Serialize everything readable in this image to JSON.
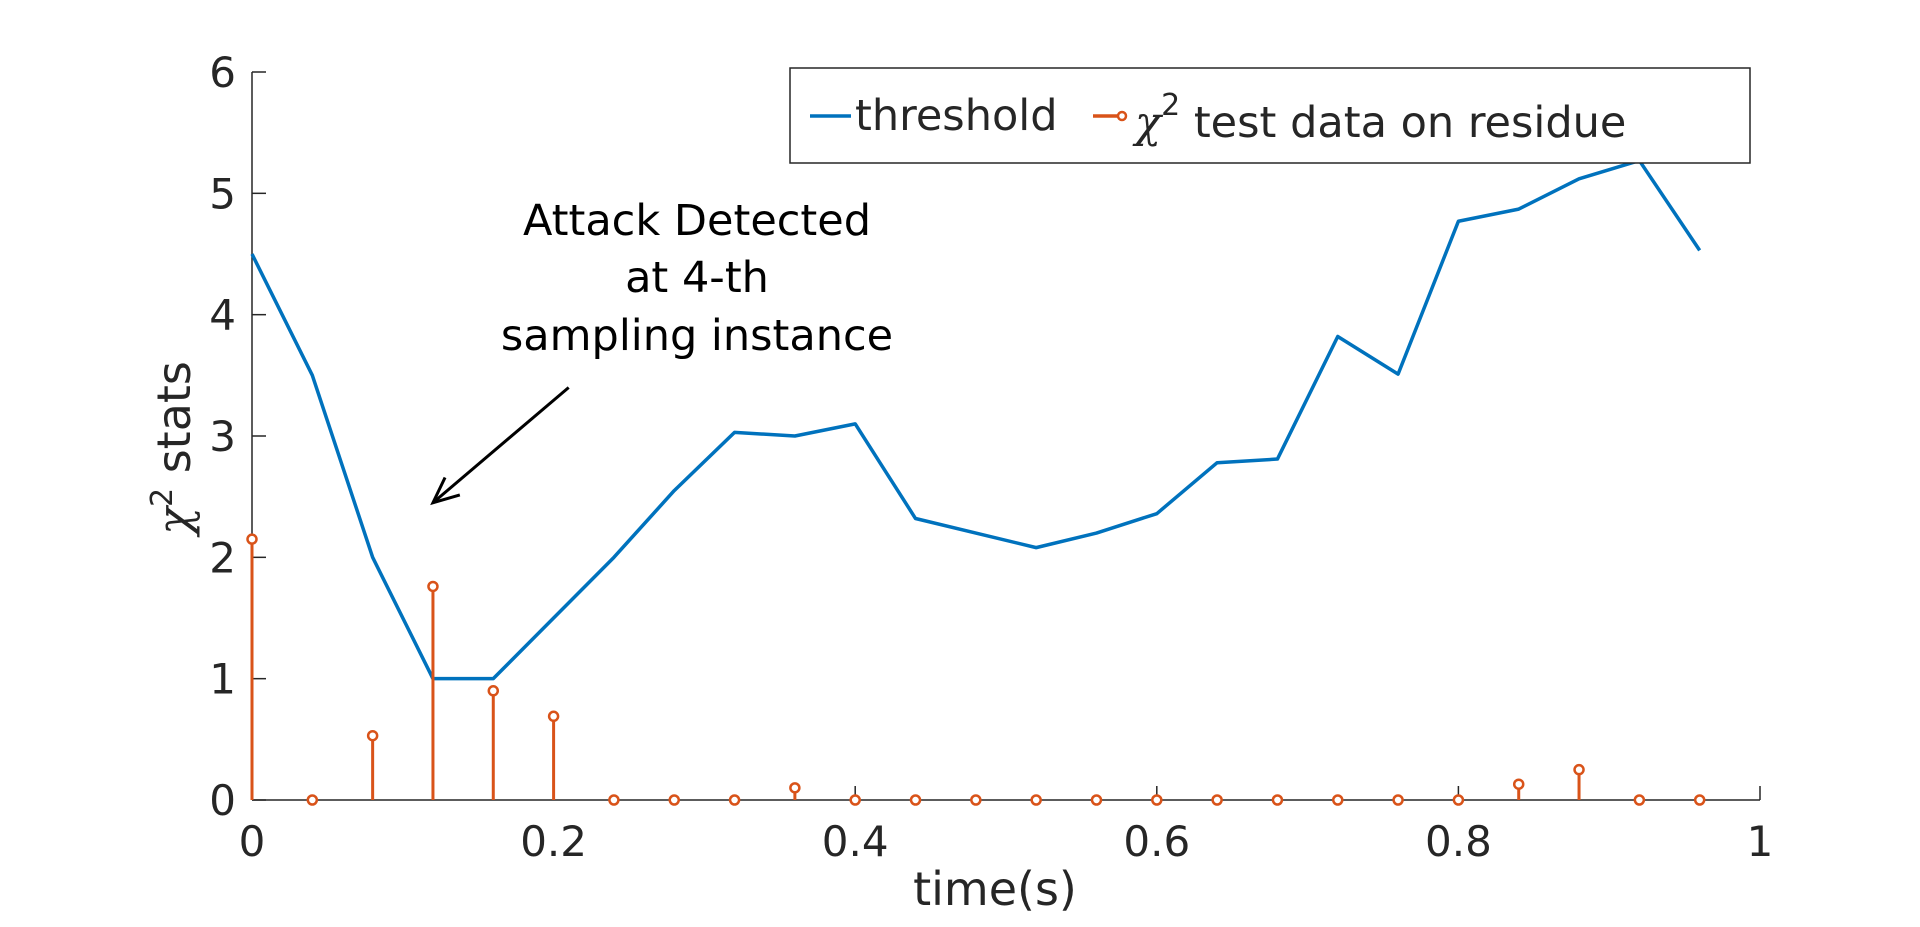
{
  "chart_data": {
    "type": "line",
    "xlabel": "time(s)",
    "ylabel": {
      "symbol": "χ",
      "sup": "2",
      "text": " stats"
    },
    "xlim": [
      0,
      1
    ],
    "ylim": [
      0,
      6
    ],
    "xticks": [
      0,
      0.2,
      0.4,
      0.6,
      0.8,
      1
    ],
    "xtick_labels": [
      "0",
      "0.2",
      "0.4",
      "0.6",
      "0.8",
      "1"
    ],
    "yticks": [
      0,
      1,
      2,
      3,
      4,
      5,
      6
    ],
    "ytick_labels": [
      "0",
      "1",
      "2",
      "3",
      "4",
      "5",
      "6"
    ],
    "grid": false,
    "legend_position": "top-right",
    "legend": {
      "threshold_label": "threshold",
      "stem_symbol": "χ",
      "stem_sup": "2",
      "stem_label": " test data on residue"
    },
    "series": [
      {
        "name": "threshold",
        "type": "line",
        "color": "#0072BD",
        "x": [
          0,
          0.04,
          0.08,
          0.12,
          0.16,
          0.2,
          0.24,
          0.28,
          0.32,
          0.36,
          0.4,
          0.44,
          0.48,
          0.52,
          0.56,
          0.6,
          0.64,
          0.68,
          0.72,
          0.76,
          0.8,
          0.84,
          0.88,
          0.92,
          0.96
        ],
        "y": [
          4.5,
          3.5,
          2.0,
          1.0,
          1.0,
          1.5,
          2.0,
          2.55,
          3.03,
          3.0,
          3.1,
          2.32,
          2.2,
          2.08,
          2.2,
          2.36,
          2.78,
          2.81,
          3.82,
          3.51,
          4.77,
          4.87,
          5.12,
          5.27,
          4.53
        ]
      },
      {
        "name": "χ2 test data on residue",
        "type": "stem",
        "color": "#D95319",
        "x": [
          0,
          0.04,
          0.08,
          0.12,
          0.16,
          0.2,
          0.24,
          0.28,
          0.32,
          0.36,
          0.4,
          0.44,
          0.48,
          0.52,
          0.56,
          0.6,
          0.64,
          0.68,
          0.72,
          0.76,
          0.8,
          0.84,
          0.88,
          0.92,
          0.96
        ],
        "y": [
          2.15,
          0,
          0.53,
          1.76,
          0.9,
          0.69,
          0,
          0,
          0,
          0.1,
          0,
          0,
          0,
          0,
          0,
          0,
          0,
          0,
          0,
          0,
          0,
          0.13,
          0.25,
          0,
          0
        ]
      }
    ],
    "annotation": {
      "lines": [
        "Attack Detected",
        "at 4-th",
        "sampling instance"
      ],
      "arrow_from": [
        0.21,
        3.4
      ],
      "arrow_to": [
        0.12,
        2.45
      ]
    }
  }
}
